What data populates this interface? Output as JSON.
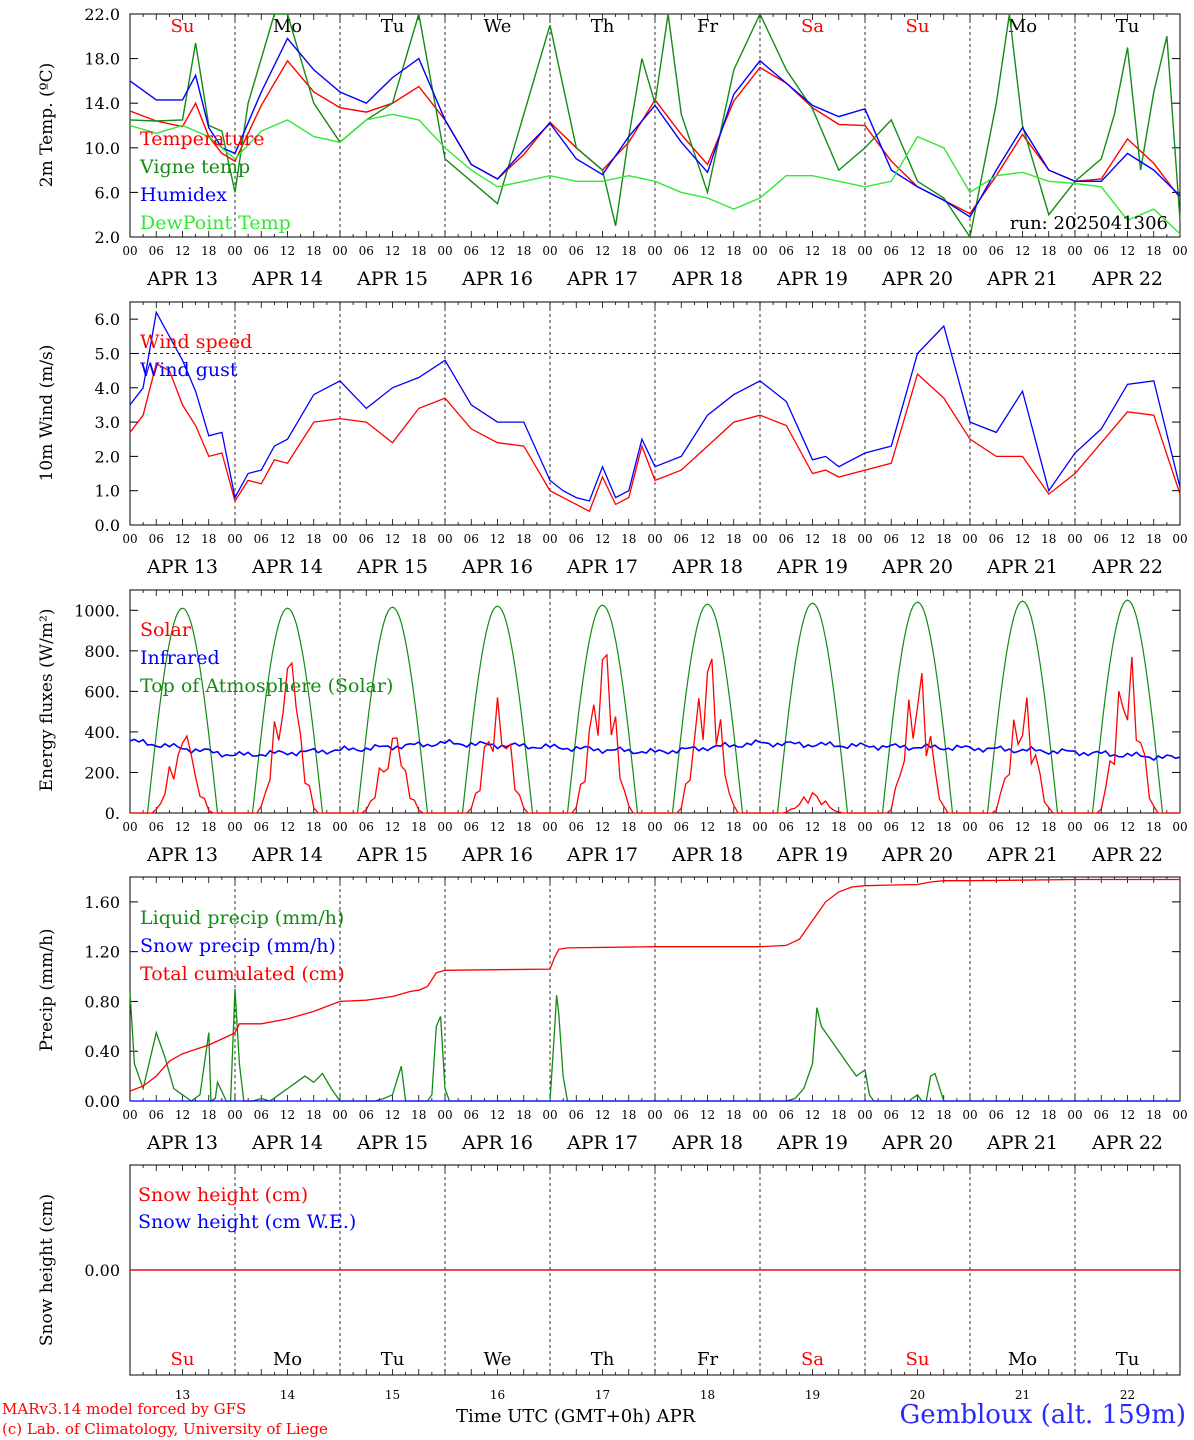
{
  "colors": {
    "red": "#ff0000",
    "darkgreen": "#158a15",
    "blue": "#0000ff",
    "lightgreen": "#33e833",
    "black": "#000000",
    "location": "#2a2aff"
  },
  "meta": {
    "run_label": "run: 2025041306",
    "footer_model": "MARv3.14 model forced by GFS",
    "footer_lab": "(c) Lab. of Climatology, University of Liege",
    "footer_axis": "Time UTC (GMT+0h) APR",
    "location": "Gembloux (alt. 159m)"
  },
  "days": {
    "names": [
      "Su",
      "Mo",
      "Tu",
      "We",
      "Th",
      "Fr",
      "Sa",
      "Su",
      "Mo",
      "Tu"
    ],
    "name_colors": [
      "red",
      "black",
      "black",
      "black",
      "black",
      "black",
      "red",
      "red",
      "black",
      "black"
    ],
    "dates": [
      "APR 13",
      "APR 14",
      "APR 15",
      "APR 16",
      "APR 17",
      "APR 18",
      "APR 19",
      "APR 20",
      "APR 21",
      "APR 22"
    ],
    "numbers": [
      "13",
      "14",
      "15",
      "16",
      "17",
      "18",
      "19",
      "20",
      "21",
      "22"
    ],
    "hour_ticks": [
      "00",
      "06",
      "12",
      "18"
    ],
    "end_tick": "00"
  },
  "chart_data": [
    {
      "type": "line",
      "ylabel": "2m Temp. (ºC)",
      "ylim": [
        2,
        22
      ],
      "yticks": [
        "2.0",
        "6.0",
        "10.0",
        "14.0",
        "18.0",
        "22.0"
      ],
      "x_unit": "hours since Apr 13 00 UTC",
      "series": [
        {
          "name": "Temperature",
          "color": "red",
          "x": [
            0,
            6,
            12,
            15,
            18,
            21,
            24,
            30,
            36,
            42,
            48,
            54,
            60,
            66,
            72,
            78,
            84,
            90,
            96,
            102,
            108,
            114,
            120,
            126,
            132,
            138,
            144,
            150,
            156,
            162,
            168,
            174,
            180,
            186,
            192,
            198,
            204,
            210,
            216,
            222,
            228,
            234,
            240
          ],
          "y": [
            13.3,
            12.4,
            11.9,
            14.0,
            11.0,
            9.5,
            8.8,
            13.8,
            17.8,
            15.0,
            13.6,
            13.2,
            14.0,
            15.5,
            12.5,
            8.5,
            7.2,
            9.4,
            12.3,
            10.0,
            8.0,
            10.5,
            14.3,
            11.2,
            8.5,
            14.2,
            17.2,
            15.8,
            13.6,
            12.1,
            12.0,
            8.8,
            6.5,
            5.3,
            4.1,
            7.5,
            11.2,
            8.0,
            7.0,
            7.2,
            10.8,
            8.6,
            5.5
          ]
        },
        {
          "name": "Vigne temp",
          "color": "darkgreen",
          "x": [
            0,
            6,
            12,
            15,
            18,
            21,
            24,
            27,
            30,
            33,
            36,
            42,
            48,
            54,
            60,
            66,
            72,
            78,
            84,
            90,
            96,
            102,
            108,
            111,
            114,
            117,
            120,
            123,
            126,
            132,
            138,
            144,
            150,
            156,
            162,
            168,
            174,
            180,
            186,
            192,
            195,
            198,
            201,
            204,
            207,
            210,
            216,
            222,
            225,
            228,
            231,
            234,
            237,
            240
          ],
          "y": [
            12.5,
            12.4,
            12.5,
            19.4,
            12.0,
            11.5,
            6.0,
            14.0,
            18.0,
            26.0,
            22.0,
            14.0,
            10.5,
            12.5,
            14.0,
            23.0,
            9.0,
            7.0,
            5.0,
            13.0,
            21.0,
            10.0,
            8.0,
            3.0,
            11.0,
            18.0,
            14.0,
            23.0,
            13.0,
            6.0,
            17.0,
            27.0,
            17.0,
            13.5,
            8.0,
            10.0,
            12.5,
            7.0,
            5.5,
            2.0,
            8.0,
            14.0,
            22.0,
            12.0,
            8.0,
            4.0,
            7.0,
            9.0,
            13.0,
            19.0,
            8.0,
            15.0,
            20.0,
            3.5
          ]
        },
        {
          "name": "Humidex",
          "color": "blue",
          "x": [
            0,
            6,
            12,
            15,
            18,
            21,
            24,
            30,
            36,
            42,
            48,
            54,
            60,
            66,
            72,
            78,
            84,
            90,
            96,
            102,
            108,
            114,
            120,
            126,
            132,
            138,
            144,
            150,
            156,
            162,
            168,
            174,
            180,
            186,
            192,
            198,
            204,
            210,
            216,
            222,
            228,
            234,
            240
          ],
          "y": [
            16.0,
            14.3,
            14.3,
            16.5,
            11.8,
            10.0,
            9.5,
            15.0,
            19.8,
            17.0,
            15.0,
            14.0,
            16.3,
            18.0,
            12.5,
            8.5,
            7.2,
            9.8,
            12.2,
            9.0,
            7.6,
            11.0,
            13.8,
            10.5,
            7.8,
            14.8,
            17.8,
            15.8,
            13.8,
            12.8,
            13.5,
            8.0,
            6.5,
            5.3,
            3.8,
            8.0,
            11.8,
            8.0,
            7.0,
            7.0,
            9.5,
            8.0,
            5.7
          ]
        },
        {
          "name": "DewPoint Temp",
          "color": "lightgreen",
          "x": [
            0,
            6,
            12,
            18,
            24,
            30,
            36,
            42,
            48,
            54,
            60,
            66,
            72,
            78,
            84,
            90,
            96,
            102,
            108,
            114,
            120,
            126,
            132,
            138,
            144,
            150,
            156,
            162,
            168,
            174,
            180,
            186,
            192,
            198,
            204,
            210,
            216,
            222,
            228,
            234,
            240
          ],
          "y": [
            12.0,
            11.3,
            12.0,
            11.0,
            9.0,
            11.5,
            12.5,
            11.0,
            10.5,
            12.5,
            13.0,
            12.5,
            10.0,
            8.0,
            6.5,
            7.0,
            7.5,
            7.0,
            7.0,
            7.5,
            7.0,
            6.0,
            5.5,
            4.5,
            5.5,
            7.5,
            7.5,
            7.0,
            6.5,
            7.0,
            11.0,
            10.0,
            6.0,
            7.5,
            7.8,
            7.0,
            6.8,
            6.5,
            3.5,
            4.5,
            2.3
          ]
        }
      ]
    },
    {
      "type": "line",
      "ylabel": "10m Wind (m/s)",
      "ylim": [
        0,
        6.5
      ],
      "yticks": [
        "0.0",
        "1.0",
        "2.0",
        "3.0",
        "4.0",
        "5.0",
        "6.0"
      ],
      "ref_line": 5.0,
      "series": [
        {
          "name": "Wind speed",
          "color": "red",
          "x": [
            0,
            3,
            6,
            9,
            12,
            15,
            18,
            21,
            24,
            27,
            30,
            33,
            36,
            42,
            48,
            54,
            60,
            66,
            72,
            78,
            84,
            90,
            96,
            99,
            102,
            105,
            108,
            111,
            114,
            117,
            120,
            126,
            132,
            138,
            144,
            150,
            156,
            159,
            162,
            168,
            174,
            180,
            186,
            192,
            198,
            204,
            210,
            216,
            222,
            228,
            234,
            240
          ],
          "y": [
            2.7,
            3.2,
            4.7,
            4.5,
            3.5,
            2.9,
            2.0,
            2.1,
            0.7,
            1.3,
            1.2,
            1.9,
            1.8,
            3.0,
            3.1,
            3.0,
            2.4,
            3.4,
            3.7,
            2.8,
            2.4,
            2.3,
            1.0,
            0.8,
            0.6,
            0.4,
            1.4,
            0.6,
            0.8,
            2.3,
            1.3,
            1.6,
            2.3,
            3.0,
            3.2,
            2.9,
            1.5,
            1.6,
            1.4,
            1.6,
            1.8,
            4.4,
            3.7,
            2.5,
            2.0,
            2.0,
            0.9,
            1.5,
            2.4,
            3.3,
            3.2,
            0.9
          ]
        },
        {
          "name": "Wind gust",
          "color": "blue",
          "x": [
            0,
            3,
            6,
            9,
            12,
            15,
            18,
            21,
            24,
            27,
            30,
            33,
            36,
            42,
            48,
            54,
            60,
            66,
            72,
            78,
            84,
            90,
            96,
            99,
            102,
            105,
            108,
            111,
            114,
            117,
            120,
            126,
            132,
            138,
            144,
            150,
            156,
            159,
            162,
            168,
            174,
            180,
            186,
            192,
            198,
            204,
            210,
            216,
            222,
            228,
            234,
            240
          ],
          "y": [
            3.5,
            4.0,
            6.2,
            5.5,
            4.8,
            3.9,
            2.6,
            2.7,
            0.8,
            1.5,
            1.6,
            2.3,
            2.5,
            3.8,
            4.2,
            3.4,
            4.0,
            4.3,
            4.8,
            3.5,
            3.0,
            3.0,
            1.3,
            1.0,
            0.8,
            0.7,
            1.7,
            0.8,
            1.0,
            2.5,
            1.7,
            2.0,
            3.2,
            3.8,
            4.2,
            3.6,
            1.9,
            2.0,
            1.7,
            2.1,
            2.3,
            5.0,
            5.8,
            3.0,
            2.7,
            3.9,
            1.0,
            2.1,
            2.8,
            4.1,
            4.2,
            1.1
          ]
        }
      ]
    },
    {
      "type": "line",
      "ylabel": "Energy fluxes (W/m²)",
      "ylim": [
        0,
        1100
      ],
      "yticks": [
        "0.",
        "200.",
        "400.",
        "600.",
        "800.",
        "1000."
      ],
      "series": [
        {
          "name": "Solar",
          "color": "red",
          "peak_hours": [
            13,
            13,
            13,
            12,
            13,
            13,
            12,
            13,
            13,
            13
          ],
          "peaks": [
            380,
            740,
            370,
            570,
            780,
            760,
            100,
            690,
            570,
            770
          ]
        },
        {
          "name": "Infrared",
          "color": "blue",
          "x": [
            0,
            24,
            48,
            72,
            96,
            120,
            144,
            168,
            192,
            216,
            240
          ],
          "y": [
            355,
            285,
            310,
            345,
            325,
            300,
            345,
            330,
            320,
            300,
            270
          ]
        },
        {
          "name": "Top of Atmosphere (Solar)",
          "color": "darkgreen",
          "peak_hours": [
            12,
            12,
            12,
            12,
            12,
            12,
            12,
            12,
            12,
            12
          ],
          "peaks": [
            1010,
            1010,
            1015,
            1020,
            1025,
            1030,
            1035,
            1040,
            1045,
            1050
          ]
        }
      ]
    },
    {
      "type": "line",
      "ylabel": "Precip (mm/h)",
      "ylim": [
        0,
        1.8
      ],
      "yticks": [
        "0.00",
        "0.40",
        "0.80",
        "1.20",
        "1.60"
      ],
      "series": [
        {
          "name": "Liquid precip (mm/h)",
          "color": "darkgreen",
          "x": [
            0,
            1,
            3,
            6,
            8,
            10,
            12,
            14,
            16,
            18,
            18.5,
            19.5,
            20,
            22,
            23,
            24,
            25,
            26,
            28,
            30,
            32,
            34,
            36,
            38,
            40,
            42,
            44,
            46,
            48,
            50,
            52,
            54,
            56,
            58,
            60,
            62,
            63,
            64,
            65,
            66,
            67,
            68,
            69,
            70,
            71,
            72,
            73,
            74,
            76,
            96,
            97,
            97.5,
            98,
            99,
            100,
            102,
            104,
            106,
            108,
            120,
            144,
            150,
            152,
            154,
            156,
            157,
            158,
            160,
            162,
            164,
            166,
            168,
            169,
            170,
            172,
            178,
            180,
            181,
            182,
            183,
            184,
            186,
            240
          ],
          "y": [
            0.87,
            0.3,
            0.1,
            0.55,
            0.35,
            0.1,
            0.05,
            0.0,
            0.05,
            0.55,
            0.0,
            0.02,
            0.15,
            0.0,
            0.0,
            0.9,
            0.3,
            0.0,
            0.0,
            0.02,
            0.0,
            0.05,
            0.1,
            0.15,
            0.2,
            0.15,
            0.22,
            0.1,
            0.0,
            0.0,
            0.0,
            0.0,
            0.0,
            0.02,
            0.05,
            0.28,
            0.0,
            0.0,
            0.0,
            0.0,
            0.0,
            0.0,
            0.05,
            0.6,
            0.68,
            0.1,
            0.0,
            0.0,
            0.0,
            0.0,
            0.55,
            0.85,
            0.7,
            0.2,
            0.0,
            0.0,
            0.0,
            0.0,
            0.0,
            0.0,
            0.0,
            0.0,
            0.02,
            0.1,
            0.3,
            0.75,
            0.6,
            0.5,
            0.4,
            0.3,
            0.2,
            0.25,
            0.05,
            0.0,
            0.0,
            0.0,
            0.05,
            0.0,
            0.0,
            0.2,
            0.22,
            0.0,
            0.0
          ]
        },
        {
          "name": "Snow precip (mm/h)",
          "color": "blue",
          "x": [
            0,
            240
          ],
          "y": [
            0,
            0
          ]
        },
        {
          "name": "Total cumulated (cm)",
          "color": "red",
          "x": [
            0,
            3,
            6,
            9,
            12,
            18,
            23,
            24,
            25,
            30,
            36,
            42,
            48,
            54,
            60,
            64,
            66,
            68,
            70,
            72,
            96,
            97,
            98,
            100,
            120,
            144,
            150,
            153,
            156,
            159,
            162,
            165,
            168,
            180,
            183,
            186,
            192,
            216,
            240
          ],
          "y": [
            0.08,
            0.12,
            0.2,
            0.32,
            0.38,
            0.45,
            0.53,
            0.55,
            0.62,
            0.62,
            0.66,
            0.72,
            0.8,
            0.81,
            0.84,
            0.88,
            0.89,
            0.92,
            1.03,
            1.05,
            1.06,
            1.15,
            1.22,
            1.23,
            1.24,
            1.24,
            1.25,
            1.3,
            1.45,
            1.6,
            1.68,
            1.72,
            1.73,
            1.74,
            1.76,
            1.77,
            1.77,
            1.78,
            1.78
          ]
        }
      ]
    },
    {
      "type": "line",
      "ylabel": "Snow height (cm)",
      "yticks": [
        "0.00"
      ],
      "series": [
        {
          "name": "Snow height (cm)",
          "color": "red",
          "x": [
            0,
            240
          ],
          "y": [
            0,
            0
          ]
        },
        {
          "name": "Snow height (cm W.E.)",
          "color": "blue",
          "x": [
            0,
            240
          ],
          "y": [
            0,
            0
          ]
        }
      ]
    }
  ]
}
